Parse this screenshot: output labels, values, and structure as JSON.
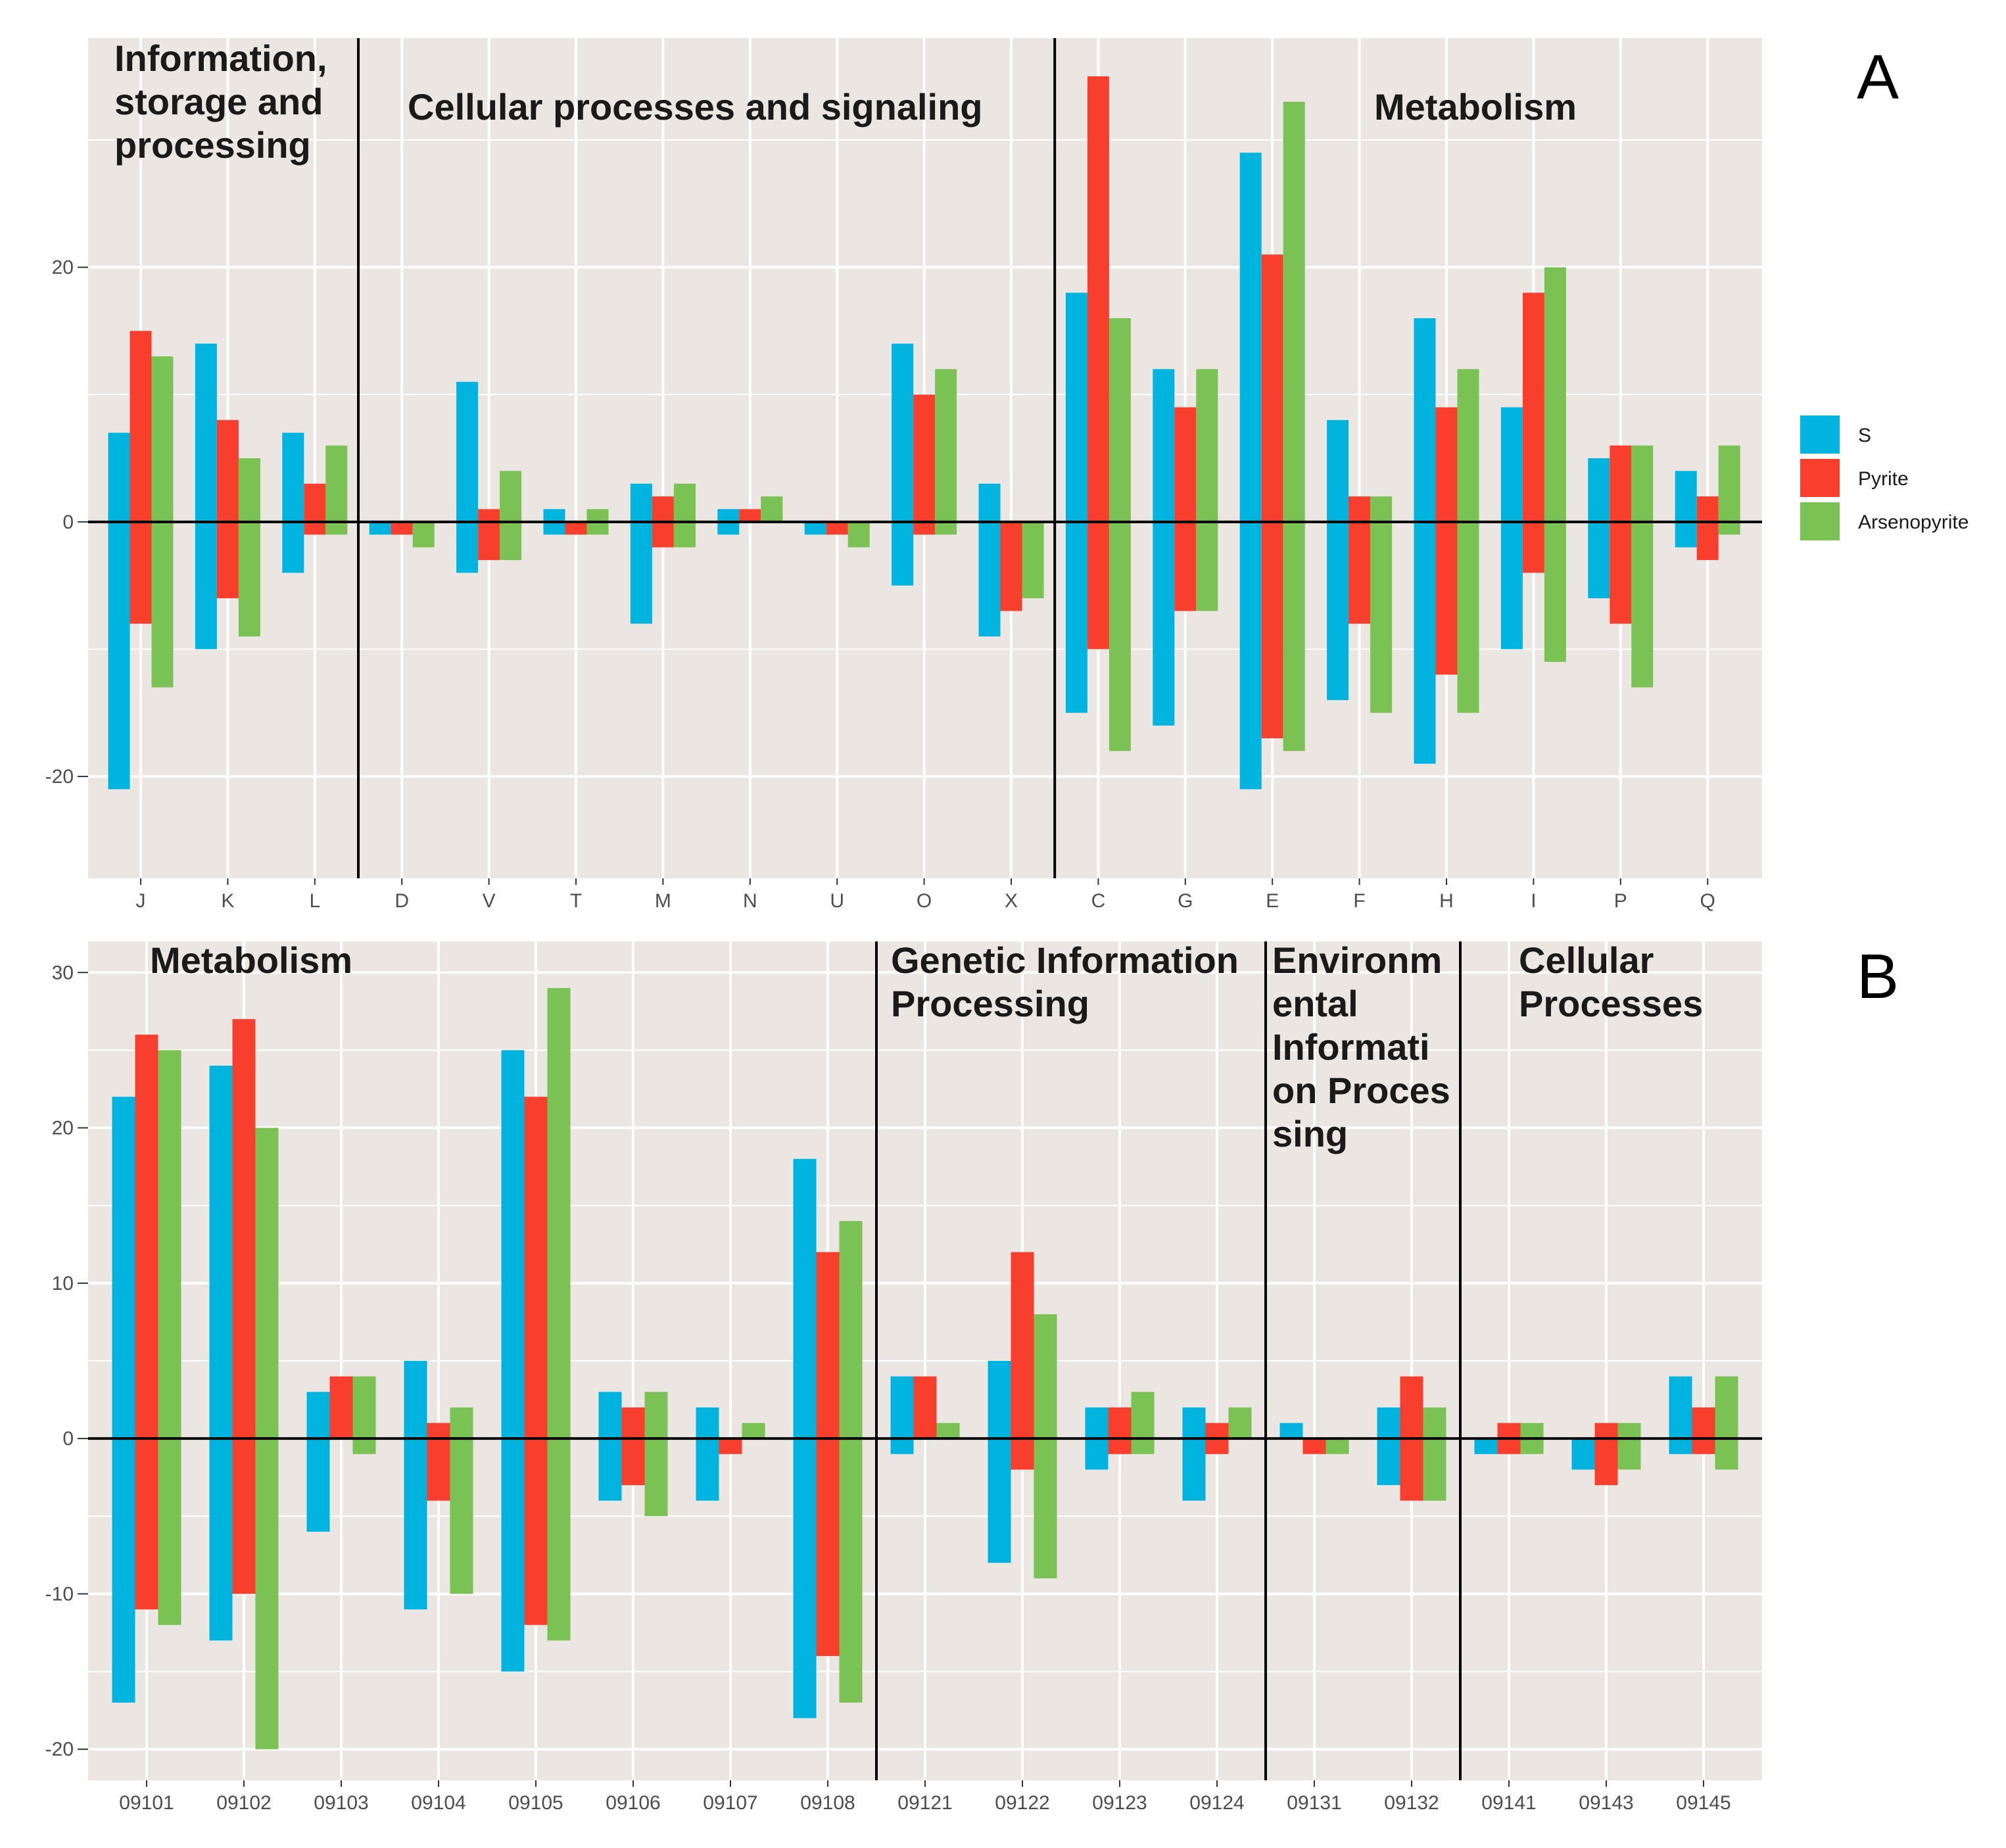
{
  "colors": {
    "panel_bg": "#ebe6e2",
    "grid": "#ffffff",
    "axis_line": "#000000",
    "series": [
      "#00b4e0",
      "#f83f2e",
      "#7ac254"
    ]
  },
  "legend": {
    "items": [
      "S",
      "Pyrite",
      "Arsenopyrite"
    ]
  },
  "chart_data": [
    {
      "type": "bar",
      "panel": "A",
      "ylim": [
        -28,
        38
      ],
      "yticks": [
        -20,
        0,
        20
      ],
      "ytick_labels": [
        "-20",
        "0",
        "20"
      ],
      "categories": [
        "J",
        "K",
        "L",
        "D",
        "V",
        "T",
        "M",
        "N",
        "U",
        "O",
        "X",
        "C",
        "G",
        "E",
        "F",
        "H",
        "I",
        "P",
        "Q"
      ],
      "series": [
        {
          "name": "S",
          "up": [
            7,
            14,
            7,
            0,
            11,
            1,
            3,
            1,
            0,
            14,
            3,
            18,
            12,
            29,
            8,
            16,
            9,
            5,
            4
          ],
          "down": [
            -21,
            -10,
            -4,
            -1,
            -4,
            -1,
            -8,
            -1,
            -1,
            -5,
            -9,
            -15,
            -16,
            -21,
            -14,
            -19,
            -10,
            -6,
            -2
          ]
        },
        {
          "name": "Pyrite",
          "up": [
            15,
            8,
            3,
            0,
            1,
            0,
            2,
            1,
            0,
            10,
            0,
            35,
            9,
            21,
            2,
            9,
            18,
            6,
            2
          ],
          "down": [
            -8,
            -6,
            -1,
            -1,
            -3,
            -1,
            -2,
            0,
            -1,
            -1,
            -7,
            -10,
            -7,
            -17,
            -8,
            -12,
            -4,
            -8,
            -3
          ]
        },
        {
          "name": "Arsenopyrite",
          "up": [
            13,
            5,
            6,
            0,
            4,
            1,
            3,
            2,
            0,
            12,
            0,
            16,
            12,
            33,
            2,
            12,
            20,
            6,
            6
          ],
          "down": [
            -13,
            -9,
            -1,
            -2,
            -3,
            -1,
            -2,
            0,
            -2,
            -1,
            -6,
            -18,
            -7,
            -18,
            -15,
            -15,
            -11,
            -13,
            -1
          ]
        }
      ],
      "groups": [
        {
          "lines": [
            "Information,",
            "storage and",
            "processing"
          ],
          "start": 0,
          "end": 2
        },
        {
          "lines": [
            "Cellular processes and signaling"
          ],
          "start": 3,
          "end": 10
        },
        {
          "lines": [
            "Metabolism"
          ],
          "start": 11,
          "end": 18
        }
      ]
    },
    {
      "type": "bar",
      "panel": "B",
      "ylim": [
        -22,
        32
      ],
      "yticks": [
        -20,
        -10,
        0,
        10,
        20,
        30
      ],
      "ytick_labels": [
        "-20",
        "-10",
        "0",
        "10",
        "20",
        "30"
      ],
      "categories": [
        "09101",
        "09102",
        "09103",
        "09104",
        "09105",
        "09106",
        "09107",
        "09108",
        "09121",
        "09122",
        "09123",
        "09124",
        "09131",
        "09132",
        "09141",
        "09143",
        "09145"
      ],
      "series": [
        {
          "name": "S",
          "up": [
            22,
            24,
            3,
            5,
            25,
            3,
            2,
            18,
            4,
            5,
            2,
            2,
            1,
            2,
            0,
            0,
            4
          ],
          "down": [
            -17,
            -13,
            -6,
            -11,
            -15,
            -4,
            -4,
            -18,
            -1,
            -8,
            -2,
            -4,
            0,
            -3,
            -1,
            -2,
            -1
          ]
        },
        {
          "name": "Pyrite",
          "up": [
            26,
            27,
            4,
            1,
            22,
            2,
            0,
            12,
            4,
            12,
            2,
            1,
            0,
            4,
            1,
            1,
            2
          ],
          "down": [
            -11,
            -10,
            0,
            -4,
            -12,
            -3,
            -1,
            -14,
            0,
            -2,
            -1,
            -1,
            -1,
            -4,
            -1,
            -3,
            -1
          ]
        },
        {
          "name": "Arsenopyrite",
          "up": [
            25,
            20,
            4,
            2,
            29,
            3,
            1,
            14,
            1,
            8,
            3,
            2,
            0,
            2,
            1,
            1,
            4
          ],
          "down": [
            -12,
            -20,
            -1,
            -10,
            -13,
            -5,
            0,
            -17,
            0,
            -9,
            -1,
            0,
            -1,
            -4,
            -1,
            -2,
            -2
          ]
        }
      ],
      "groups": [
        {
          "lines": [
            "Metabolism"
          ],
          "start": 0,
          "end": 7
        },
        {
          "lines": [
            "Genetic Information",
            "Processing"
          ],
          "start": 8,
          "end": 11
        },
        {
          "lines": [
            "Environm",
            "ental",
            "Informati",
            "on Proces",
            "sing"
          ],
          "start": 12,
          "end": 13
        },
        {
          "lines": [
            "Cellular",
            "Processes"
          ],
          "start": 14,
          "end": 16
        }
      ]
    }
  ]
}
